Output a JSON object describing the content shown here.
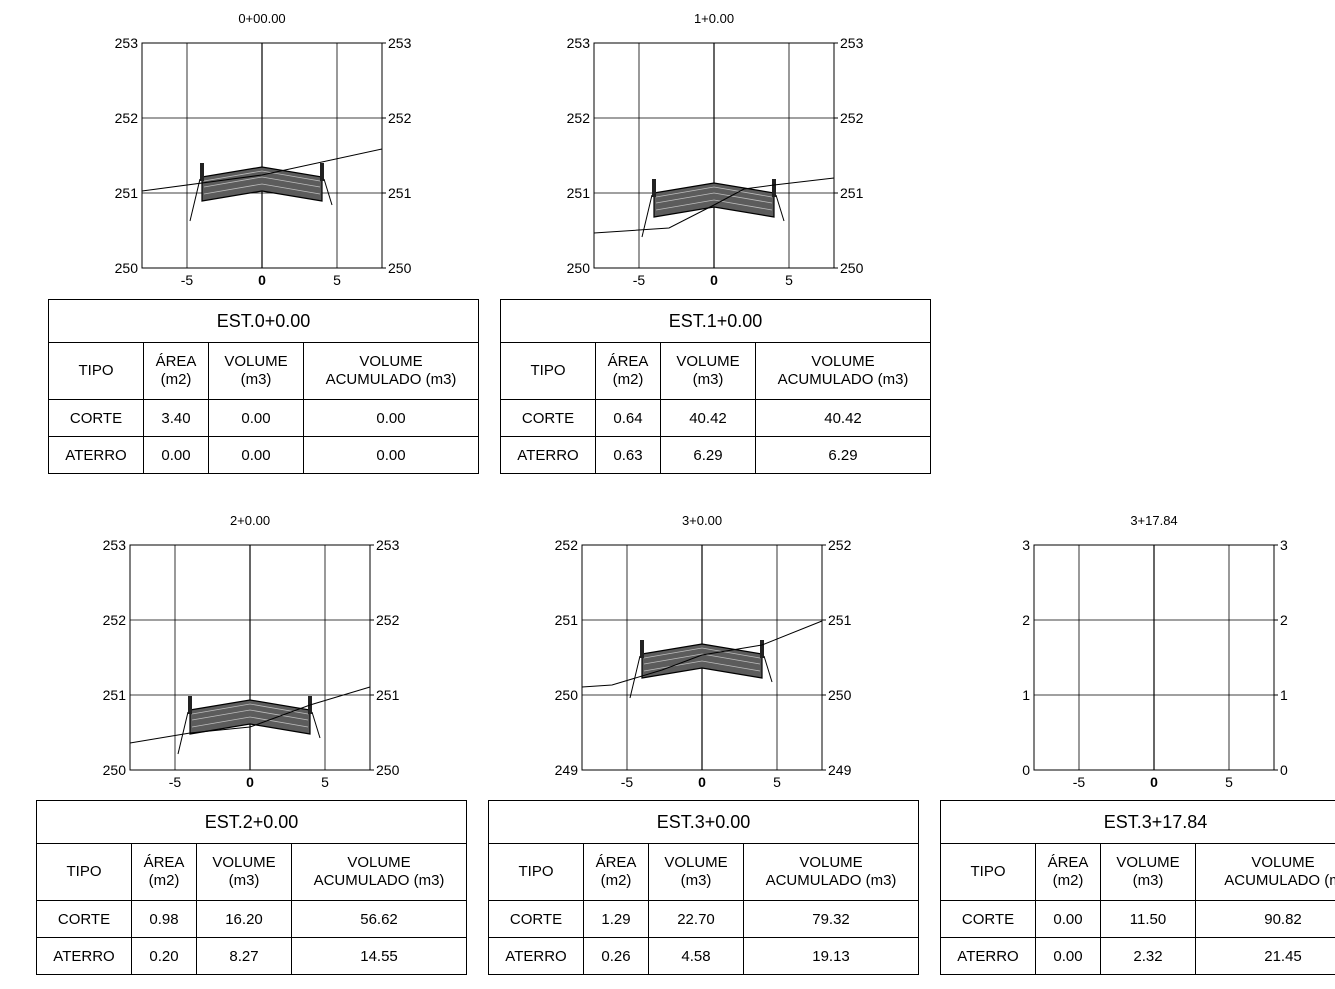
{
  "sections": [
    {
      "station": "0+00.00",
      "y_ticks": [
        "253",
        "252",
        "251",
        "250"
      ],
      "x_ticks": [
        "-5",
        "0",
        "5"
      ],
      "table": {
        "title": "EST.0+0.00",
        "headers": [
          "TIPO",
          "ÁREA\n(m2)",
          "VOLUME\n(m3)",
          "VOLUME\nACUMULADO (m3)"
        ],
        "rows": [
          [
            "CORTE",
            "3.40",
            "0.00",
            "0.00"
          ],
          [
            "ATERRO",
            "0.00",
            "0.00",
            "0.00"
          ]
        ]
      }
    },
    {
      "station": "1+0.00",
      "y_ticks": [
        "253",
        "252",
        "251",
        "250"
      ],
      "x_ticks": [
        "-5",
        "0",
        "5"
      ],
      "table": {
        "title": "EST.1+0.00",
        "headers": [
          "TIPO",
          "ÁREA\n(m2)",
          "VOLUME\n(m3)",
          "VOLUME\nACUMULADO (m3)"
        ],
        "rows": [
          [
            "CORTE",
            "0.64",
            "40.42",
            "40.42"
          ],
          [
            "ATERRO",
            "0.63",
            "6.29",
            "6.29"
          ]
        ]
      }
    },
    {
      "station": "2+0.00",
      "y_ticks": [
        "253",
        "252",
        "251",
        "250"
      ],
      "x_ticks": [
        "-5",
        "0",
        "5"
      ],
      "table": {
        "title": "EST.2+0.00",
        "headers": [
          "TIPO",
          "ÁREA\n(m2)",
          "VOLUME\n(m3)",
          "VOLUME\nACUMULADO (m3)"
        ],
        "rows": [
          [
            "CORTE",
            "0.98",
            "16.20",
            "56.62"
          ],
          [
            "ATERRO",
            "0.20",
            "8.27",
            "14.55"
          ]
        ]
      }
    },
    {
      "station": "3+0.00",
      "y_ticks": [
        "252",
        "251",
        "250",
        "249"
      ],
      "x_ticks": [
        "-5",
        "0",
        "5"
      ],
      "table": {
        "title": "EST.3+0.00",
        "headers": [
          "TIPO",
          "ÁREA\n(m2)",
          "VOLUME\n(m3)",
          "VOLUME\nACUMULADO (m3)"
        ],
        "rows": [
          [
            "CORTE",
            "1.29",
            "22.70",
            "79.32"
          ],
          [
            "ATERRO",
            "0.26",
            "4.58",
            "19.13"
          ]
        ]
      }
    },
    {
      "station": "3+17.84",
      "y_ticks": [
        "3",
        "2",
        "1",
        "0"
      ],
      "x_ticks": [
        "-5",
        "0",
        "5"
      ],
      "table": {
        "title": "EST.3+17.84",
        "headers": [
          "TIPO",
          "ÁREA\n(m2)",
          "VOLUME\n(m3)",
          "VOLUME\nACUMULADO (m"
        ],
        "rows": [
          [
            "CORTE",
            "0.00",
            "11.50",
            "90.82"
          ],
          [
            "ATERRO",
            "0.00",
            "2.32",
            "21.45"
          ]
        ]
      }
    }
  ]
}
